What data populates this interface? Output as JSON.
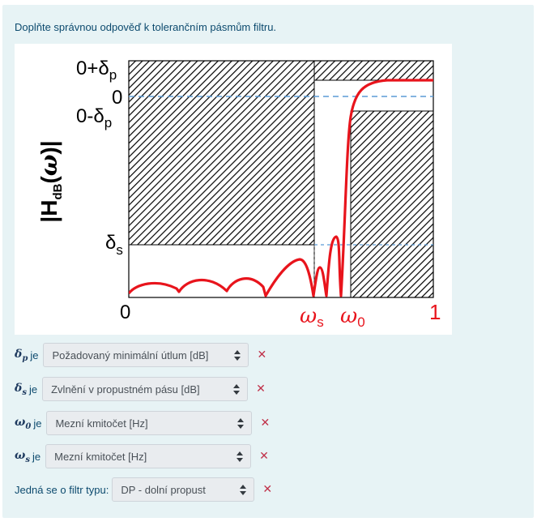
{
  "question": "Doplňte správnou odpověď k tolerančním pásmům filtru.",
  "figure": {
    "y_axis_label": "|H",
    "y_axis_sub": "dB",
    "y_axis_omega": "ω",
    "y_axis_close": ")|",
    "y_axis_open": "(",
    "labels": {
      "top": "0+δ",
      "top_sub": "p",
      "zero": "0",
      "mid": "0-δ",
      "mid_sub": "p",
      "ds": "δ",
      "ds_sub": "s",
      "origin": "0",
      "ws": "ω",
      "ws_sub": "s",
      "w0": "ω",
      "w0_sub": "0",
      "one": "1"
    },
    "colors": {
      "curve": "#e8141c",
      "dashed": "#5b9bd5",
      "marker_red": "#e8141c"
    }
  },
  "rows": [
    {
      "var": "δ",
      "sub": "p",
      "je": "je",
      "selected": "Požadovaný minimální útlum [dB]",
      "x": "✕"
    },
    {
      "var": "δ",
      "sub": "s",
      "je": "je",
      "selected": "Zvlnění v propustném pásu [dB]",
      "x": "✕"
    },
    {
      "var": "ω",
      "sub": "0",
      "je": "je",
      "selected": "Mezní kmitočet [Hz]",
      "x": "✕"
    },
    {
      "var": "ω",
      "sub": "s",
      "je": "je",
      "selected": "Mezní kmitočet [Hz]",
      "x": "✕"
    }
  ],
  "filter_type": {
    "label": "Jedná se o filtr typu:",
    "selected": "DP - dolní propust",
    "x": "✕"
  }
}
